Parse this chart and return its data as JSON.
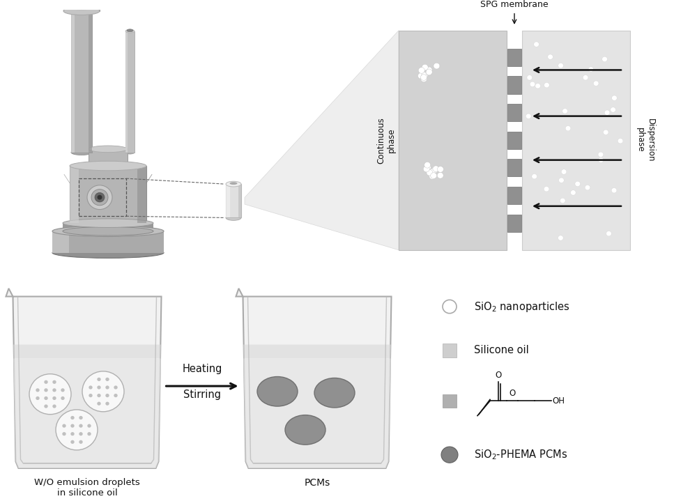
{
  "bg_color": "#ffffff",
  "spg_label": "SPG membrane",
  "wo_emulsion_label": "W/O emulsion droplets\nin silicone oil",
  "pcms_label": "PCMs",
  "cont_phase_bg": "#d5d5d5",
  "disp_phase_bg": "#e5e5e5",
  "membrane_slot_color": "#808080",
  "dot_color": "#ffffff",
  "arrow_color": "#111111",
  "beaker_edge": "#999999",
  "beaker_fill": "#f5f5f5",
  "liquid_fill": "#e8e8e8",
  "droplet_edge": "#aaaaaa",
  "pcm_fill": "#909090",
  "pcm_edge": "#666666",
  "legend_circle_edge": "#aaaaaa",
  "legend_sq1_fill": "#d0d0d0",
  "legend_sq2_fill": "#b8b8b8",
  "legend_pcm_fill": "#808080",
  "text_color": "#111111"
}
